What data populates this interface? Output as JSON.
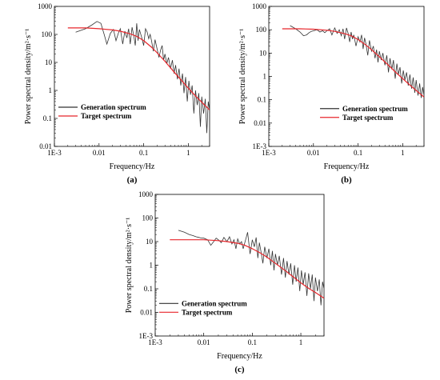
{
  "chart_data": [
    {
      "type": "line",
      "panel_label": "(a)",
      "xlabel": "Frequency/Hz",
      "ylabel": "Power spectral density/m²·s⁻¹",
      "xscale": "log",
      "yscale": "log",
      "xlim": [
        0.001,
        3
      ],
      "ylim": [
        0.01,
        1000
      ],
      "xticks": [
        {
          "v": 0.001,
          "label": "1E-3"
        },
        {
          "v": 0.01,
          "label": "0.01"
        },
        {
          "v": 0.1,
          "label": "0.1"
        },
        {
          "v": 1,
          "label": "1"
        }
      ],
      "yticks": [
        {
          "v": 0.01,
          "label": "0.01"
        },
        {
          "v": 0.1,
          "label": "0.1"
        },
        {
          "v": 1,
          "label": "1"
        },
        {
          "v": 10,
          "label": "10"
        },
        {
          "v": 100,
          "label": "100"
        },
        {
          "v": 1000,
          "label": "1000"
        }
      ],
      "legend_position": "middle-left",
      "series": [
        {
          "name": "Generation spectrum",
          "color": "#333333",
          "x": [
            0.003,
            0.005,
            0.007,
            0.009,
            0.011,
            0.013,
            0.015,
            0.018,
            0.021,
            0.024,
            0.027,
            0.03,
            0.034,
            0.038,
            0.042,
            0.046,
            0.05,
            0.055,
            0.06,
            0.065,
            0.07,
            0.075,
            0.08,
            0.09,
            0.1,
            0.11,
            0.12,
            0.13,
            0.14,
            0.15,
            0.165,
            0.18,
            0.2,
            0.22,
            0.24,
            0.26,
            0.28,
            0.3,
            0.33,
            0.36,
            0.4,
            0.44,
            0.48,
            0.52,
            0.57,
            0.62,
            0.68,
            0.74,
            0.8,
            0.87,
            0.95,
            1.03,
            1.12,
            1.22,
            1.33,
            1.45,
            1.58,
            1.72,
            1.87,
            2.0,
            2.2,
            2.4,
            2.6,
            2.8,
            3.0
          ],
          "y": [
            120,
            160,
            220,
            290,
            250,
            100,
            45,
            110,
            150,
            60,
            110,
            160,
            45,
            130,
            75,
            160,
            45,
            180,
            90,
            40,
            250,
            60,
            150,
            80,
            40,
            160,
            120,
            70,
            100,
            60,
            25,
            65,
            30,
            15,
            28,
            40,
            12,
            20,
            9,
            15,
            6,
            12,
            4,
            8,
            2.5,
            6,
            1.5,
            4,
            0.8,
            3,
            0.4,
            2.2,
            0.7,
            1.5,
            0.15,
            1.0,
            0.3,
            0.8,
            0.05,
            0.6,
            0.15,
            0.5,
            0.03,
            0.4,
            0.2
          ]
        },
        {
          "name": "Target spectrum",
          "color": "#e8262b",
          "x": [
            0.002,
            0.005,
            0.01,
            0.02,
            0.03,
            0.05,
            0.07,
            0.1,
            0.15,
            0.2,
            0.3,
            0.5,
            0.7,
            1,
            1.5,
            2,
            3
          ],
          "y": [
            170,
            170,
            160,
            145,
            130,
            105,
            85,
            60,
            35,
            22,
            11,
            4.2,
            2.3,
            1.2,
            0.6,
            0.38,
            0.2
          ]
        }
      ]
    },
    {
      "type": "line",
      "panel_label": "(b)",
      "xlabel": "Frequency/Hz",
      "ylabel": "Power spectral density/m²·s⁻¹",
      "xscale": "log",
      "yscale": "log",
      "xlim": [
        0.001,
        3
      ],
      "ylim": [
        0.001,
        1000
      ],
      "xticks": [
        {
          "v": 0.001,
          "label": "1E-3"
        },
        {
          "v": 0.01,
          "label": "0.01"
        },
        {
          "v": 0.1,
          "label": "0.1"
        },
        {
          "v": 1,
          "label": "1"
        }
      ],
      "yticks": [
        {
          "v": 0.001,
          "label": "1E-3"
        },
        {
          "v": 0.01,
          "label": "0.01"
        },
        {
          "v": 0.1,
          "label": "0.1"
        },
        {
          "v": 1,
          "label": "1"
        },
        {
          "v": 10,
          "label": "10"
        },
        {
          "v": 100,
          "label": "100"
        },
        {
          "v": 1000,
          "label": "1000"
        }
      ],
      "legend_position": "middle-right",
      "series": [
        {
          "name": "Generation spectrum",
          "color": "#333333",
          "x": [
            0.003,
            0.004,
            0.005,
            0.006,
            0.007,
            0.008,
            0.009,
            0.01,
            0.012,
            0.014,
            0.016,
            0.018,
            0.02,
            0.023,
            0.026,
            0.03,
            0.034,
            0.038,
            0.042,
            0.046,
            0.05,
            0.055,
            0.06,
            0.065,
            0.07,
            0.075,
            0.08,
            0.09,
            0.1,
            0.11,
            0.12,
            0.13,
            0.14,
            0.15,
            0.165,
            0.18,
            0.2,
            0.22,
            0.24,
            0.26,
            0.28,
            0.3,
            0.33,
            0.36,
            0.4,
            0.44,
            0.48,
            0.52,
            0.57,
            0.62,
            0.68,
            0.74,
            0.8,
            0.87,
            0.95,
            1.03,
            1.12,
            1.22,
            1.33,
            1.45,
            1.58,
            1.72,
            1.87,
            2.0,
            2.2,
            2.4,
            2.6,
            2.8,
            3.0
          ],
          "y": [
            150,
            110,
            80,
            55,
            60,
            75,
            85,
            90,
            100,
            80,
            90,
            75,
            90,
            110,
            60,
            120,
            70,
            100,
            55,
            110,
            40,
            120,
            70,
            30,
            80,
            40,
            60,
            20,
            50,
            30,
            60,
            15,
            45,
            25,
            8,
            35,
            12,
            20,
            6,
            14,
            4,
            12,
            5,
            10,
            3,
            8,
            1.5,
            6,
            2,
            5,
            0.8,
            3.5,
            1.2,
            2.5,
            0.5,
            1.8,
            0.7,
            1.5,
            0.4,
            1.2,
            0.3,
            0.9,
            0.2,
            0.7,
            0.15,
            0.5,
            0.12,
            0.35,
            0.15
          ]
        },
        {
          "name": "Target spectrum",
          "color": "#e8262b",
          "x": [
            0.002,
            0.005,
            0.01,
            0.02,
            0.03,
            0.05,
            0.07,
            0.1,
            0.15,
            0.2,
            0.3,
            0.5,
            0.7,
            1,
            1.5,
            2,
            3
          ],
          "y": [
            110,
            110,
            105,
            95,
            85,
            68,
            55,
            38,
            22,
            14,
            7,
            2.8,
            1.5,
            0.8,
            0.4,
            0.25,
            0.13
          ]
        }
      ]
    },
    {
      "type": "line",
      "panel_label": "(c)",
      "xlabel": "Frequency/Hz",
      "ylabel": "Power spectral density/m²·s⁻¹",
      "xscale": "log",
      "yscale": "log",
      "xlim": [
        0.001,
        3
      ],
      "ylim": [
        0.001,
        1000
      ],
      "xticks": [
        {
          "v": 0.001,
          "label": "1E-3"
        },
        {
          "v": 0.01,
          "label": "0.01"
        },
        {
          "v": 0.1,
          "label": "0.1"
        },
        {
          "v": 1,
          "label": "1"
        }
      ],
      "yticks": [
        {
          "v": 0.001,
          "label": "1E-3"
        },
        {
          "v": 0.01,
          "label": "0.01"
        },
        {
          "v": 0.1,
          "label": "0.1"
        },
        {
          "v": 1,
          "label": "1"
        },
        {
          "v": 10,
          "label": "10"
        },
        {
          "v": 100,
          "label": "100"
        },
        {
          "v": 1000,
          "label": "1000"
        }
      ],
      "legend_position": "bottom-left",
      "series": [
        {
          "name": "Generation spectrum",
          "color": "#333333",
          "x": [
            0.003,
            0.004,
            0.005,
            0.006,
            0.007,
            0.008,
            0.009,
            0.01,
            0.012,
            0.014,
            0.016,
            0.018,
            0.02,
            0.023,
            0.026,
            0.03,
            0.034,
            0.038,
            0.042,
            0.046,
            0.05,
            0.055,
            0.06,
            0.065,
            0.07,
            0.075,
            0.08,
            0.09,
            0.1,
            0.11,
            0.12,
            0.13,
            0.14,
            0.15,
            0.165,
            0.18,
            0.2,
            0.22,
            0.24,
            0.26,
            0.28,
            0.3,
            0.33,
            0.36,
            0.4,
            0.44,
            0.48,
            0.52,
            0.57,
            0.62,
            0.68,
            0.74,
            0.8,
            0.87,
            0.95,
            1.03,
            1.12,
            1.22,
            1.33,
            1.45,
            1.58,
            1.72,
            1.87,
            2.0,
            2.2,
            2.4,
            2.6,
            2.8,
            3.0
          ],
          "y": [
            30,
            25,
            20,
            18,
            16,
            15,
            14,
            14,
            12,
            7,
            10,
            14,
            12,
            9,
            15,
            10,
            16,
            8,
            12,
            5,
            13,
            8,
            10,
            5,
            9,
            15,
            25,
            3,
            12,
            6,
            15,
            2,
            9,
            4,
            1.2,
            6,
            2,
            5,
            1,
            4,
            0.6,
            3,
            1,
            2.5,
            0.4,
            2,
            0.3,
            1.5,
            0.4,
            1.2,
            0.15,
            1,
            0.2,
            0.8,
            0.08,
            0.6,
            0.15,
            0.5,
            0.05,
            0.45,
            0.1,
            0.4,
            0.03,
            0.3,
            0.08,
            0.25,
            0.02,
            0.2,
            0.1
          ]
        },
        {
          "name": "Target spectrum",
          "color": "#e8262b",
          "x": [
            0.002,
            0.005,
            0.01,
            0.02,
            0.03,
            0.05,
            0.07,
            0.1,
            0.15,
            0.2,
            0.3,
            0.5,
            0.7,
            1,
            1.5,
            2,
            3
          ],
          "y": [
            12,
            12,
            12,
            11,
            10,
            8.5,
            7,
            5,
            3.2,
            2.2,
            1.2,
            0.55,
            0.32,
            0.18,
            0.1,
            0.07,
            0.04
          ]
        }
      ]
    }
  ]
}
